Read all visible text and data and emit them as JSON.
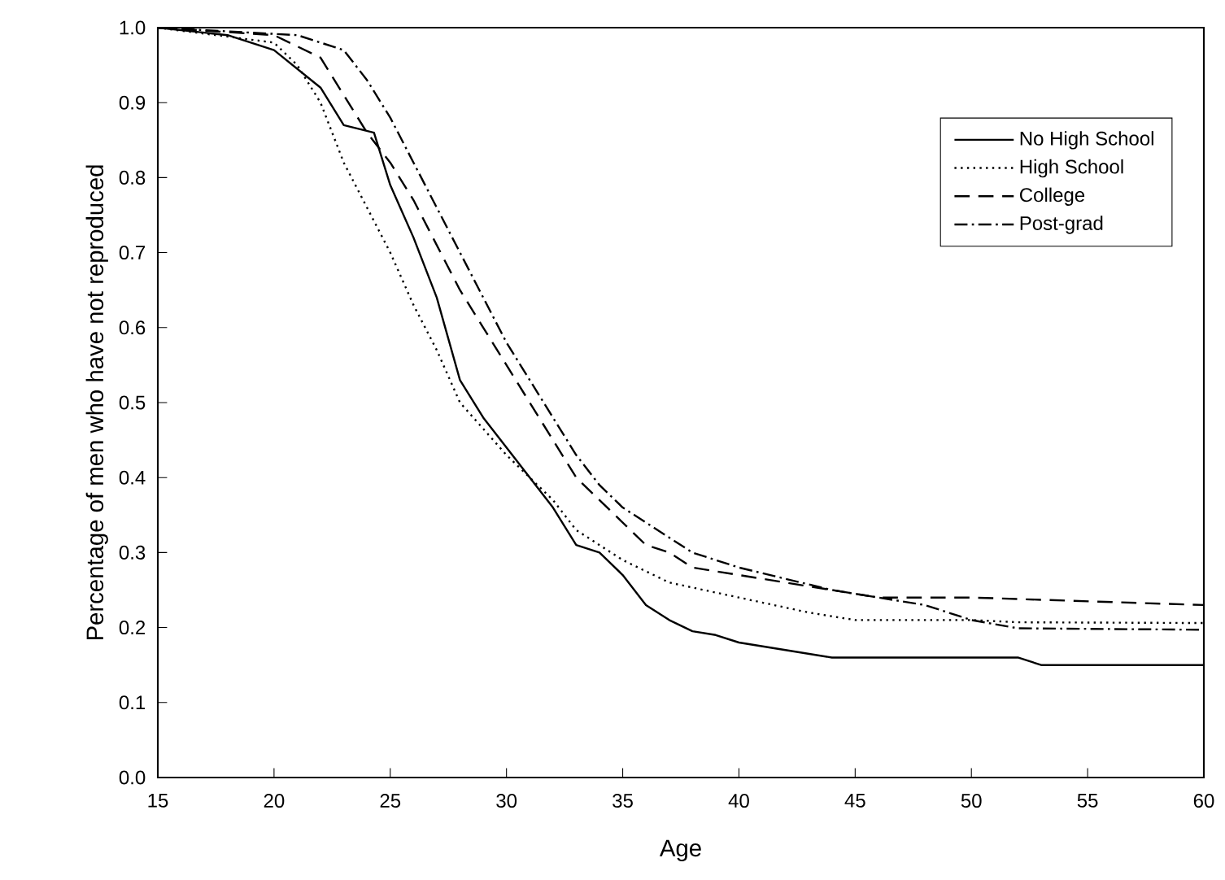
{
  "chart_data": {
    "type": "line",
    "xlabel": "Age",
    "ylabel": "Percentage of men who have not reproduced",
    "xlim": [
      15,
      60
    ],
    "ylim": [
      0,
      1
    ],
    "xticks": [
      15,
      20,
      25,
      30,
      35,
      40,
      45,
      50,
      55,
      60
    ],
    "yticks": [
      {
        "value": 0,
        "label": "0.0"
      },
      0.1,
      0.2,
      0.3,
      0.4,
      0.5,
      0.6,
      0.7,
      0.8,
      0.9,
      {
        "value": 1,
        "label": "1.0"
      }
    ],
    "grid": false,
    "legend": "top right",
    "marker": "none",
    "series": [
      {
        "name": "No High School",
        "color": "#000000",
        "line_style": "solid",
        "x": [
          15,
          18,
          20,
          22,
          23,
          24.3,
          25,
          26,
          27,
          28,
          29,
          30,
          31,
          32,
          33,
          34,
          35,
          36,
          37,
          38,
          39,
          40,
          42,
          44,
          48,
          52,
          53,
          60
        ],
        "values": [
          1.0,
          0.99,
          0.97,
          0.92,
          0.87,
          0.86,
          0.79,
          0.72,
          0.64,
          0.53,
          0.48,
          0.44,
          0.4,
          0.36,
          0.31,
          0.3,
          0.27,
          0.23,
          0.21,
          0.195,
          0.19,
          0.18,
          0.17,
          0.16,
          0.16,
          0.16,
          0.15,
          0.15
        ]
      },
      {
        "name": "High School",
        "color": "#000000",
        "line_style": "dotted",
        "x": [
          15,
          20,
          21,
          22,
          23,
          24,
          25,
          26,
          27,
          28,
          30,
          32,
          33,
          34,
          35,
          37,
          40,
          43,
          45,
          50,
          52,
          60
        ],
        "values": [
          1.0,
          0.98,
          0.95,
          0.9,
          0.82,
          0.76,
          0.7,
          0.63,
          0.57,
          0.5,
          0.43,
          0.37,
          0.33,
          0.31,
          0.29,
          0.26,
          0.24,
          0.22,
          0.21,
          0.21,
          0.207,
          0.206
        ]
      },
      {
        "name": "College",
        "color": "#000000",
        "line_style": "dashed",
        "x": [
          15,
          20,
          22,
          23,
          24,
          25,
          26,
          27,
          28,
          29,
          30,
          31,
          32,
          33,
          34,
          35,
          36,
          37,
          38,
          40,
          42,
          44,
          46,
          50,
          55,
          60
        ],
        "values": [
          1.0,
          0.99,
          0.96,
          0.91,
          0.86,
          0.82,
          0.77,
          0.71,
          0.65,
          0.6,
          0.55,
          0.5,
          0.45,
          0.4,
          0.37,
          0.34,
          0.31,
          0.3,
          0.28,
          0.27,
          0.26,
          0.25,
          0.24,
          0.24,
          0.235,
          0.23
        ]
      },
      {
        "name": "Post-grad",
        "color": "#000000",
        "line_style": "dashdot",
        "x": [
          15,
          21,
          22,
          23,
          24,
          25,
          26,
          27,
          28,
          29,
          30,
          31,
          32,
          33,
          34,
          35,
          36,
          37,
          38,
          40,
          42,
          44,
          46,
          48,
          50,
          52,
          60
        ],
        "values": [
          1.0,
          0.99,
          0.98,
          0.97,
          0.93,
          0.88,
          0.82,
          0.76,
          0.7,
          0.64,
          0.58,
          0.53,
          0.48,
          0.43,
          0.39,
          0.36,
          0.34,
          0.32,
          0.3,
          0.28,
          0.265,
          0.25,
          0.24,
          0.23,
          0.21,
          0.199,
          0.197
        ]
      }
    ]
  }
}
